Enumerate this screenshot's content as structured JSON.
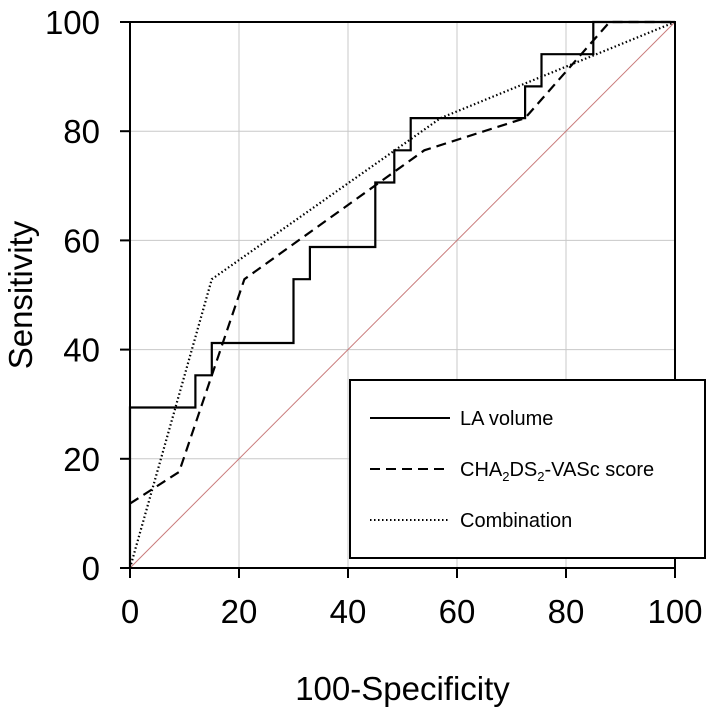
{
  "chart_data": {
    "type": "line",
    "title": "",
    "xlabel": "100-Specificity",
    "ylabel": "Sensitivity",
    "xlim": [
      0,
      100
    ],
    "ylim": [
      0,
      100
    ],
    "xticks": [
      0,
      20,
      40,
      60,
      80,
      100
    ],
    "yticks": [
      0,
      20,
      40,
      60,
      80,
      100
    ],
    "grid": true,
    "legend_position": "bottom-right",
    "series": [
      {
        "name": "LA volume",
        "style": "solid",
        "color": "#000000",
        "x": [
          0,
          0,
          12,
          12,
          15,
          15,
          30,
          30,
          33,
          33,
          45,
          45,
          48.5,
          48.5,
          51.5,
          51.5,
          72.5,
          72.5,
          75.5,
          75.5,
          85,
          85,
          100
        ],
        "y": [
          0,
          29.4,
          29.4,
          35.3,
          35.3,
          41.2,
          41.2,
          52.9,
          52.9,
          58.8,
          58.8,
          70.6,
          70.6,
          76.5,
          76.5,
          82.4,
          82.4,
          88.2,
          88.2,
          94.1,
          94.1,
          100,
          100
        ]
      },
      {
        "name_parts": [
          {
            "text": "CHA",
            "sub": false
          },
          {
            "text": "2",
            "sub": true
          },
          {
            "text": "DS",
            "sub": false
          },
          {
            "text": "2",
            "sub": true
          },
          {
            "text": "-VASc score",
            "sub": false
          }
        ],
        "style": "dashed",
        "color": "#000000",
        "x": [
          0,
          9,
          21,
          54,
          72.5,
          88,
          100
        ],
        "y": [
          11.8,
          17.6,
          52.9,
          76.5,
          82.4,
          100,
          100
        ]
      },
      {
        "name": "Combination",
        "style": "dotted",
        "color": "#000000",
        "x": [
          0,
          15,
          57,
          100
        ],
        "y": [
          0,
          52.9,
          82.4,
          100
        ]
      }
    ],
    "reference_line": {
      "x": [
        0,
        100
      ],
      "y": [
        0,
        100
      ],
      "color": "#c97b7b"
    }
  }
}
